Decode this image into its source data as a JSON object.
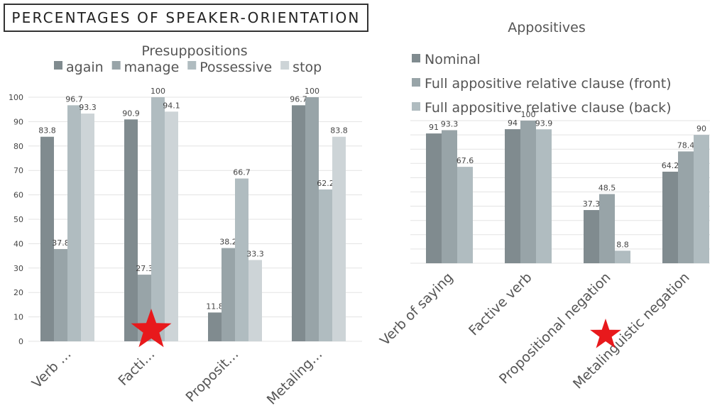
{
  "page": {
    "title": "PERCENTAGES OF SPEAKER-ORIENTATION"
  },
  "colors": [
    "#808b8f",
    "#98a4a8",
    "#b0bcc0",
    "#cdd4d7"
  ],
  "chart_data": [
    {
      "type": "bar",
      "title": "Presuppositions",
      "categories": [
        "Verb …",
        "Facti…",
        "Proposit…",
        "Metaling…"
      ],
      "series": [
        {
          "name": "again",
          "values": [
            83.8,
            90.9,
            11.8,
            96.7
          ]
        },
        {
          "name": "manage",
          "values": [
            37.8,
            27.3,
            38.2,
            100
          ]
        },
        {
          "name": "Possessive",
          "values": [
            96.7,
            100,
            66.7,
            62.2
          ]
        },
        {
          "name": "stop",
          "values": [
            93.3,
            94.1,
            33.3,
            83.8
          ]
        }
      ],
      "ylim": [
        0,
        100
      ],
      "yticks": [
        0,
        10,
        20,
        30,
        40,
        50,
        60,
        70,
        80,
        90,
        100
      ],
      "grid": true,
      "legend": "top",
      "marker": {
        "category_index": 1,
        "color": "#e8191c"
      }
    },
    {
      "type": "bar",
      "title": "Appositives",
      "categories": [
        "Verb of saying",
        "Factive verb",
        "Propositional negation",
        "Metalinguistic negation"
      ],
      "series": [
        {
          "name": "Nominal",
          "values": [
            91,
            94,
            37.3,
            64.2
          ]
        },
        {
          "name": "Full appositive relative clause (front)",
          "values": [
            93.3,
            100,
            48.5,
            78.4
          ]
        },
        {
          "name": "Full appositive relative clause (back)",
          "values": [
            67.6,
            93.9,
            8.8,
            90
          ]
        }
      ],
      "ylim": [
        0,
        100
      ],
      "grid": true,
      "legend": "top-left",
      "marker": {
        "category_index": 2,
        "color": "#e8191c"
      }
    }
  ]
}
